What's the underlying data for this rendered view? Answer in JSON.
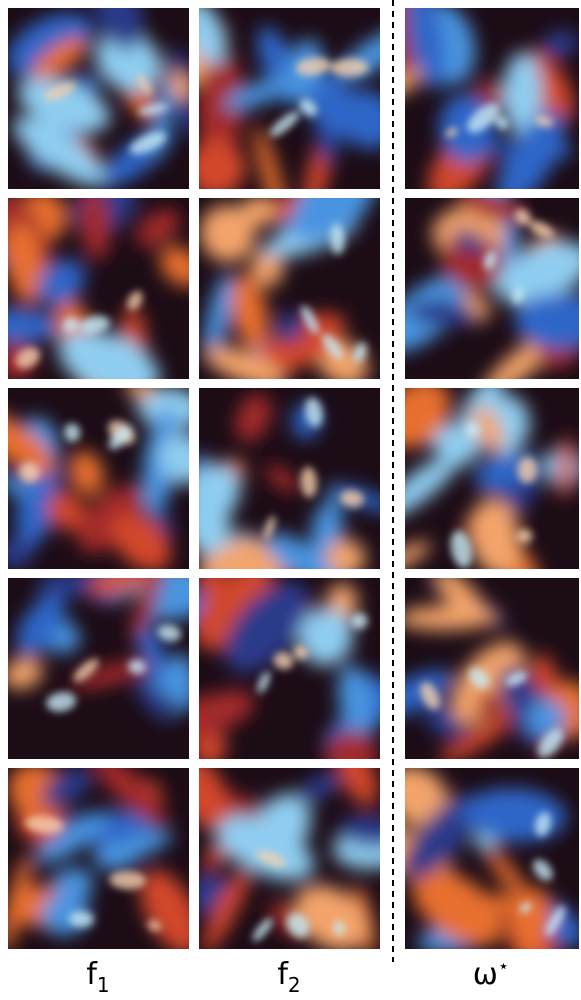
{
  "columns": [
    {
      "base": "f",
      "sub": "1"
    },
    {
      "base": "f",
      "sub": "2"
    },
    {
      "base": "ω",
      "sup": "⋆"
    }
  ]
}
